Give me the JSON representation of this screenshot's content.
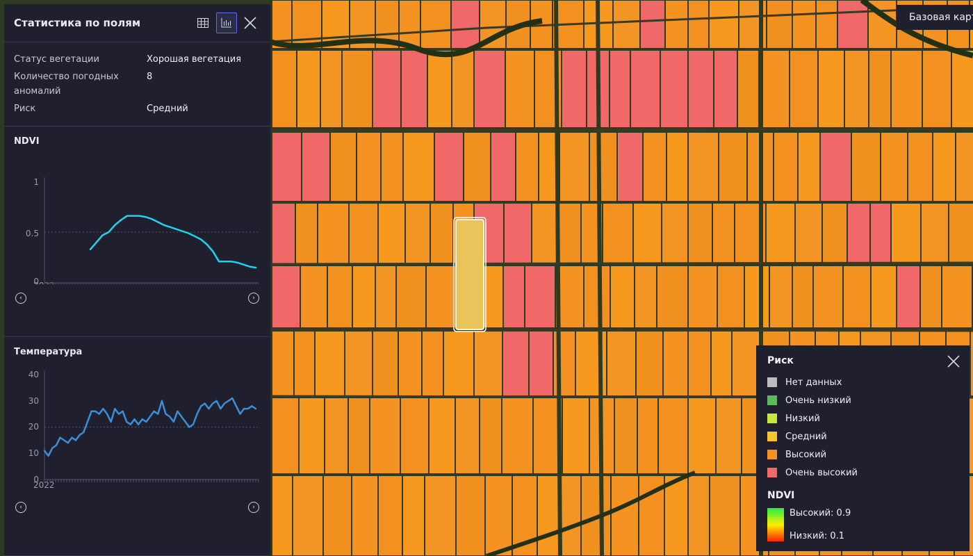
{
  "panel": {
    "title": "Статистика по полям",
    "properties": [
      {
        "key": "Статус вегетации",
        "value": "Хорошая вегетация"
      },
      {
        "key": "Количество погодных аномалий",
        "value": "8"
      },
      {
        "key": "Риск",
        "value": "Средний"
      }
    ],
    "ndvi": {
      "title": "NDVI",
      "year_label": "2022",
      "y_ticks": [
        "1",
        "0.5",
        "0"
      ]
    },
    "temperature": {
      "title": "Температура",
      "year_label": "2022",
      "y_ticks": [
        "40",
        "30",
        "20",
        "10",
        "0"
      ]
    }
  },
  "map": {
    "basemap_button": "Базовая карт"
  },
  "legend": {
    "title": "Риск",
    "items": [
      {
        "label": "Нет данных",
        "color": "#bdbdbd"
      },
      {
        "label": "Очень низкий",
        "color": "#5cb85c"
      },
      {
        "label": "Низкий",
        "color": "#c7e83a"
      },
      {
        "label": "Средний",
        "color": "#f6c431"
      },
      {
        "label": "Высокий",
        "color": "#f59322"
      },
      {
        "label": "Очень высокий",
        "color": "#f06868"
      }
    ],
    "ndvi_title": "NDVI",
    "ndvi_high": "Высокий: 0.9",
    "ndvi_low": "Низкий: 0.1"
  },
  "colors": {
    "ndvi_line": "#22d3ee",
    "temp_line": "#3b8fd6",
    "field_high": "#f59322",
    "field_very_high": "#f06868",
    "field_selected": "#e8c45a"
  },
  "chart_data": [
    {
      "type": "line",
      "title": "NDVI",
      "ylim": [
        0,
        1
      ],
      "x_label": "2022",
      "series": [
        {
          "values": [
            0.33,
            0.4,
            0.47,
            0.5,
            0.57,
            0.62,
            0.66,
            0.66,
            0.66,
            0.65,
            0.63,
            0.6,
            0.57,
            0.55,
            0.53,
            0.51,
            0.49,
            0.46,
            0.43,
            0.38,
            0.31,
            0.21,
            0.21,
            0.21,
            0.2,
            0.18,
            0.16,
            0.15
          ]
        }
      ]
    },
    {
      "type": "line",
      "title": "Температура",
      "ylim": [
        0,
        40
      ],
      "x_label": "2022",
      "series": [
        {
          "values": [
            11,
            9,
            12,
            13,
            16,
            15,
            14,
            16,
            15,
            17,
            18,
            22,
            26,
            26,
            25,
            27,
            25,
            22,
            27,
            25,
            26,
            22,
            21,
            23,
            21,
            23,
            22,
            24,
            26,
            25,
            30,
            25,
            24,
            22,
            26,
            24,
            22,
            20,
            21,
            25,
            28,
            29,
            27,
            29,
            30,
            27,
            29,
            30,
            31,
            28,
            25,
            27,
            27,
            28,
            27
          ]
        }
      ]
    }
  ]
}
